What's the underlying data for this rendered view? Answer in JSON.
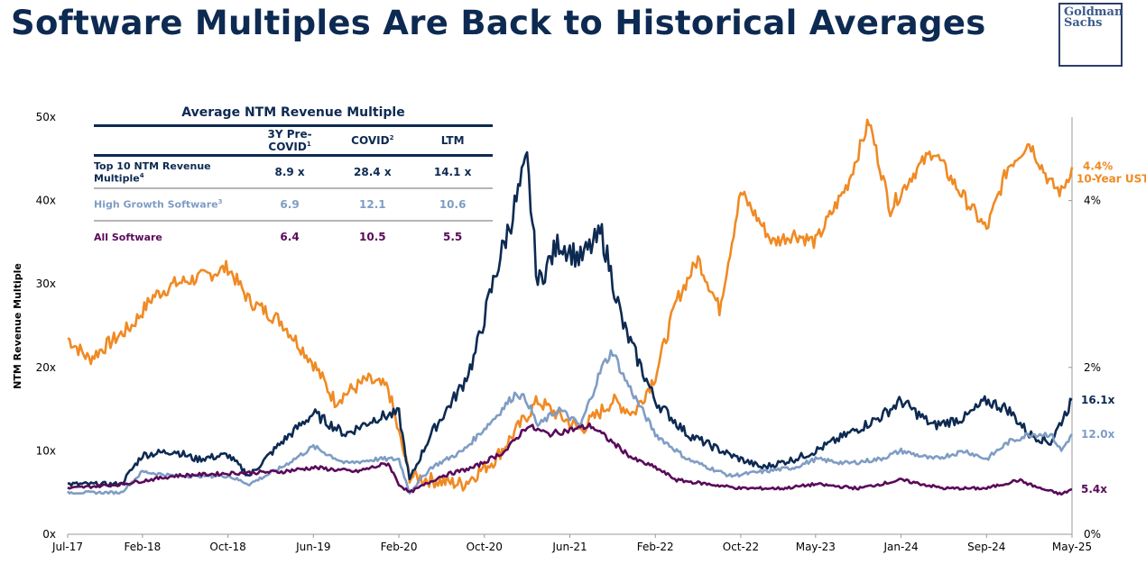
{
  "title": "Software Multiples Are Back to Historical Averages",
  "logo_text": [
    "Goldman",
    "Sachs"
  ],
  "table": {
    "title": "Average NTM Revenue Multiple",
    "headers": [
      "3Y Pre-COVID",
      "COVID",
      "LTM"
    ],
    "header_sups": [
      "1",
      "2",
      ""
    ],
    "rows": [
      {
        "label": "Top 10 NTM Revenue Multiple",
        "sup": "4",
        "values": [
          "8.9 x",
          "28.4 x",
          "14.1 x"
        ],
        "color": "#0d2a52"
      },
      {
        "label": "High Growth Software",
        "sup": "3",
        "values": [
          "6.9",
          "12.1",
          "10.6"
        ],
        "color": "#7f9dc4"
      },
      {
        "label": "All Software",
        "sup": "",
        "values": [
          "6.4",
          "10.5",
          "5.5"
        ],
        "color": "#5a0a5a"
      }
    ]
  },
  "chart_data": {
    "type": "line",
    "title": "Software Multiples Are Back to Historical Averages",
    "ylabel": "NTM Revenue Multiple",
    "ylim": [
      0,
      50
    ],
    "y2lim": [
      0,
      5
    ],
    "yticks": [
      "0x",
      "10x",
      "20x",
      "30x",
      "40x",
      "50x"
    ],
    "y2ticks": [
      "0%",
      "2%",
      "4%"
    ],
    "xticks": [
      "Jul-17",
      "Feb-18",
      "Oct-18",
      "Jun-19",
      "Feb-20",
      "Oct-20",
      "Jun-21",
      "Feb-22",
      "Oct-22",
      "May-23",
      "Jan-24",
      "Sep-24",
      "May-25"
    ],
    "xtick_months": [
      0,
      7,
      15,
      23,
      31,
      39,
      47,
      55,
      63,
      70,
      78,
      86,
      94
    ],
    "x_unit": "months since Jul-17",
    "series": [
      {
        "name": "10-Year UST",
        "axis": "right",
        "color": "#f08a24",
        "end_label": "4.4%",
        "label2": "10-Year UST",
        "x": [
          0,
          2,
          6,
          8,
          10,
          13,
          15,
          17,
          20,
          23,
          25,
          28,
          30,
          31,
          32,
          34,
          37,
          40,
          44,
          48,
          51,
          53,
          55,
          57,
          59,
          61,
          63,
          66,
          68,
          70,
          73,
          75,
          77,
          79,
          81,
          83,
          86,
          88,
          90,
          92,
          93,
          94
        ],
        "y": [
          2.35,
          2.1,
          2.5,
          2.85,
          3.0,
          3.1,
          3.2,
          2.8,
          2.55,
          2.05,
          1.6,
          1.85,
          1.75,
          1.2,
          0.7,
          0.65,
          0.6,
          0.9,
          1.6,
          1.25,
          1.6,
          1.45,
          1.9,
          2.8,
          3.3,
          2.7,
          4.1,
          3.5,
          3.6,
          3.5,
          4.2,
          4.95,
          3.9,
          4.3,
          4.6,
          4.2,
          3.65,
          4.4,
          4.7,
          4.2,
          4.1,
          4.4
        ]
      },
      {
        "name": "Top 10 NTM Revenue Multiple",
        "axis": "left",
        "color": "#0d2a52",
        "end_label": "16.1x",
        "x": [
          0,
          5,
          7,
          10,
          12,
          15,
          17,
          20,
          23,
          26,
          29,
          31,
          32,
          34,
          37,
          38,
          40,
          42,
          43,
          44,
          46,
          48,
          50,
          52,
          55,
          58,
          62,
          65,
          68,
          70,
          73,
          76,
          78,
          81,
          84,
          86,
          88,
          90,
          92,
          94
        ],
        "y": [
          6,
          6,
          9.5,
          10,
          9,
          9.5,
          7,
          11,
          14.5,
          12,
          14,
          14.5,
          6.5,
          12,
          18,
          21,
          31,
          40,
          44.5,
          30,
          35,
          33,
          36,
          25,
          16,
          12,
          9.5,
          8,
          9,
          10,
          12,
          14,
          16,
          13,
          14,
          16,
          15,
          12,
          11,
          16.1
        ]
      },
      {
        "name": "High Growth Software",
        "axis": "left",
        "color": "#7f9dc4",
        "end_label": "12.0x",
        "x": [
          0,
          5,
          7,
          10,
          15,
          17,
          20,
          23,
          26,
          29,
          31,
          32,
          34,
          37,
          40,
          42,
          43,
          44,
          46,
          48,
          50,
          51,
          52,
          55,
          58,
          62,
          65,
          68,
          70,
          73,
          76,
          78,
          81,
          84,
          86,
          88,
          90,
          92,
          93,
          94
        ],
        "y": [
          5,
          5,
          7.5,
          7,
          7,
          6,
          8,
          10.5,
          8.5,
          9,
          9,
          5,
          8,
          10,
          14,
          17,
          16,
          13,
          15,
          13,
          20,
          22,
          19,
          12,
          9,
          7,
          7.5,
          8,
          9,
          8.5,
          9,
          10,
          9,
          10,
          9,
          11,
          12,
          12,
          10,
          12
        ]
      },
      {
        "name": "All Software",
        "axis": "left",
        "color": "#5a0a5a",
        "end_label": "5.4x",
        "x": [
          0,
          5,
          10,
          15,
          20,
          23,
          27,
          30,
          31,
          32,
          35,
          38,
          41,
          43,
          45,
          47,
          49,
          51,
          53,
          55,
          57,
          60,
          63,
          67,
          70,
          74,
          78,
          82,
          86,
          89,
          91,
          93,
          94
        ],
        "y": [
          5.5,
          6,
          7,
          7.3,
          7.5,
          8,
          7.5,
          8.5,
          6,
          5,
          7,
          8,
          10,
          13,
          12,
          12.5,
          13,
          11,
          9,
          8,
          6.5,
          6,
          5.5,
          5.5,
          6,
          5.5,
          6.5,
          5.5,
          5.5,
          6.5,
          5.5,
          4.8,
          5.4
        ]
      }
    ]
  }
}
